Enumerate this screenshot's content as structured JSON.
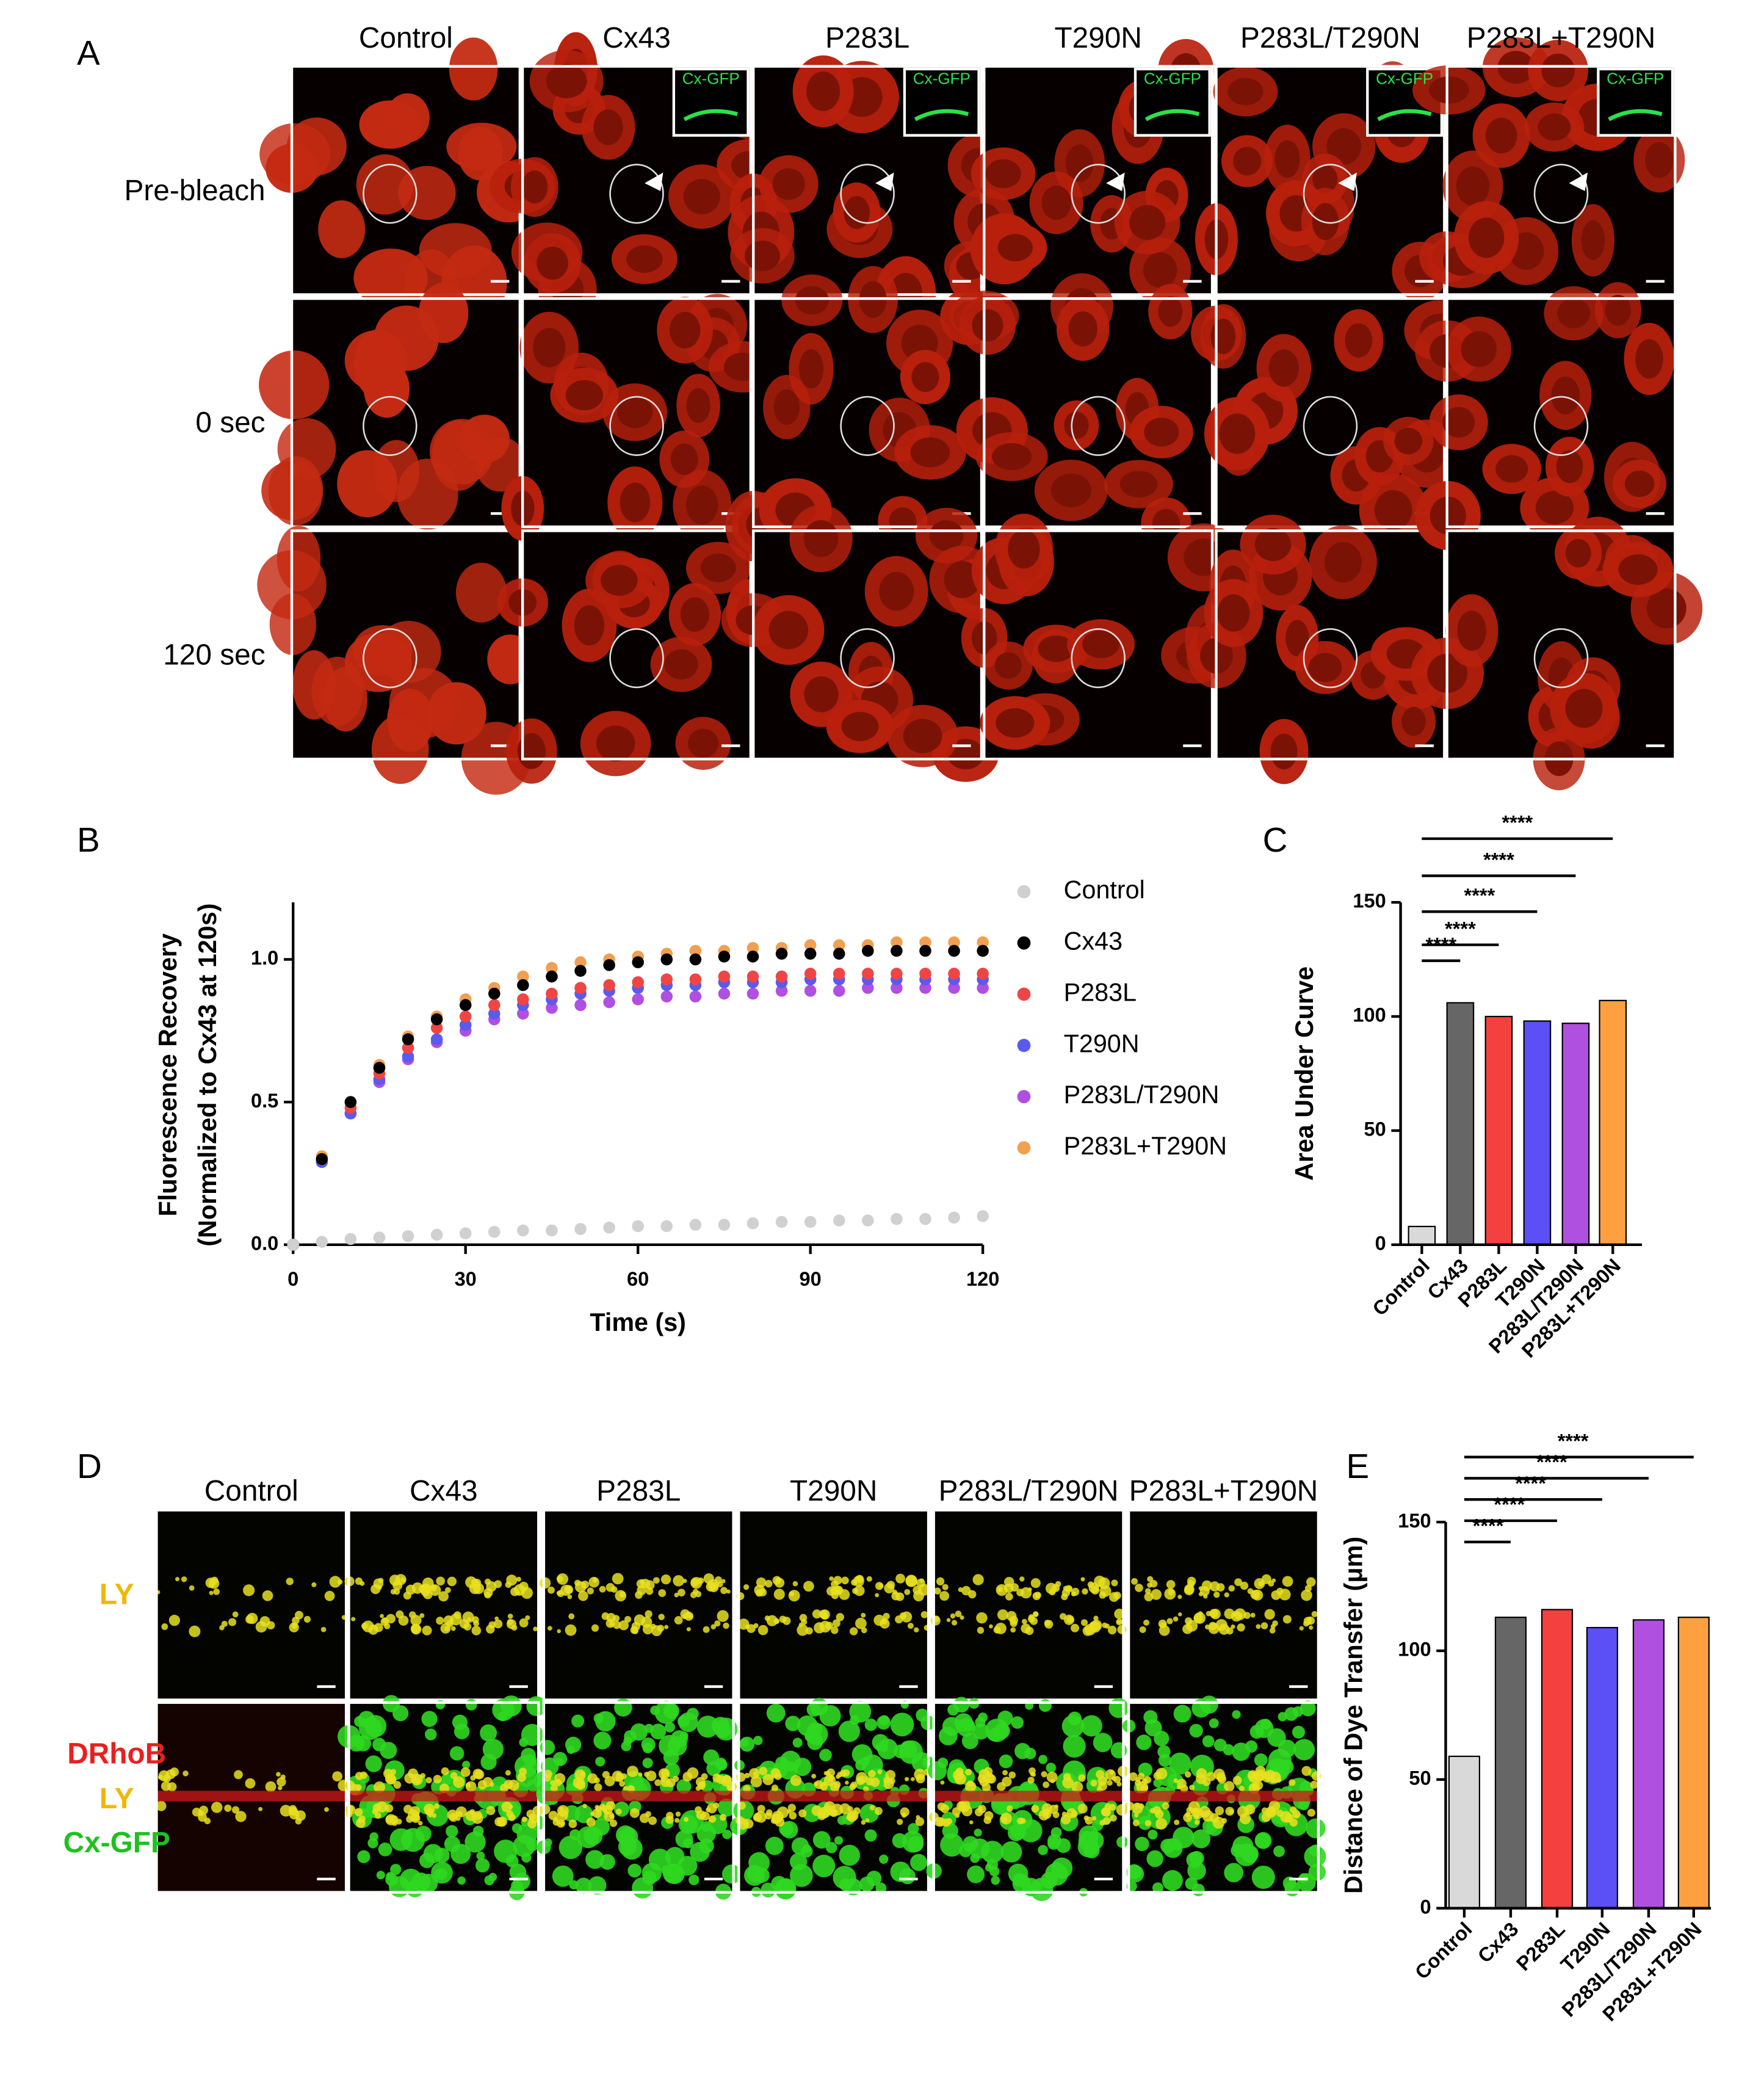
{
  "panel_labels": [
    "A",
    "B",
    "C",
    "D",
    "E"
  ],
  "panel_a": {
    "columns": [
      "Control",
      "Cx43",
      "P283L",
      "T290N",
      "P283L/T290N",
      "P283L+T290N"
    ],
    "rows": [
      "Pre-bleach",
      "0 sec",
      "120 sec"
    ],
    "inset_label": "Cx-GFP"
  },
  "panel_d": {
    "columns": [
      "Control",
      "Cx43",
      "P283L",
      "T290N",
      "P283L/T290N",
      "P283L+T290N"
    ],
    "row1_label": "LY",
    "row2_labels": [
      "DRhoB",
      "LY",
      "Cx-GFP"
    ]
  },
  "chart_data": [
    {
      "type": "line",
      "x_label": "Time (s)",
      "y_label": [
        "Fluorescence Recovery",
        "(Normalized to Cx43 at 120s)"
      ],
      "x": [
        0,
        5,
        10,
        15,
        20,
        25,
        30,
        35,
        40,
        45,
        50,
        55,
        60,
        65,
        70,
        75,
        80,
        85,
        90,
        95,
        100,
        105,
        110,
        115,
        120
      ],
      "xlim": [
        0,
        120
      ],
      "xticks": [
        0,
        30,
        60,
        90,
        120
      ],
      "ylim": [
        0,
        1.2
      ],
      "yticks": [
        {
          "value": 0,
          "label": "0.0"
        },
        0.5,
        {
          "value": 1,
          "label": "1.0"
        }
      ],
      "legend": "right",
      "series": [
        {
          "name": "Control",
          "color": "#d0d0d0",
          "values": [
            0,
            0.01,
            0.02,
            0.025,
            0.03,
            0.035,
            0.04,
            0.045,
            0.05,
            0.05,
            0.055,
            0.06,
            0.065,
            0.065,
            0.07,
            0.07,
            0.075,
            0.08,
            0.08,
            0.085,
            0.085,
            0.09,
            0.09,
            0.095,
            0.1
          ]
        },
        {
          "name": "Cx43",
          "color": "#000000",
          "values": [
            0,
            0.3,
            0.5,
            0.62,
            0.72,
            0.79,
            0.84,
            0.88,
            0.91,
            0.94,
            0.96,
            0.98,
            0.99,
            1.0,
            1.0,
            1.01,
            1.01,
            1.02,
            1.02,
            1.02,
            1.03,
            1.03,
            1.03,
            1.03,
            1.03
          ]
        },
        {
          "name": "P283L",
          "color": "#f04545",
          "values": [
            0,
            0.3,
            0.48,
            0.6,
            0.69,
            0.76,
            0.8,
            0.84,
            0.86,
            0.88,
            0.9,
            0.91,
            0.92,
            0.93,
            0.93,
            0.94,
            0.94,
            0.94,
            0.95,
            0.95,
            0.95,
            0.95,
            0.95,
            0.95,
            0.95
          ]
        },
        {
          "name": "T290N",
          "color": "#5a5af0",
          "values": [
            0,
            0.29,
            0.46,
            0.58,
            0.66,
            0.72,
            0.77,
            0.81,
            0.84,
            0.86,
            0.88,
            0.89,
            0.9,
            0.91,
            0.91,
            0.92,
            0.92,
            0.92,
            0.93,
            0.93,
            0.93,
            0.93,
            0.93,
            0.93,
            0.93
          ]
        },
        {
          "name": "P283L/T290N",
          "color": "#b050e0",
          "values": [
            0,
            0.29,
            0.46,
            0.57,
            0.65,
            0.71,
            0.75,
            0.79,
            0.81,
            0.83,
            0.84,
            0.85,
            0.86,
            0.87,
            0.87,
            0.88,
            0.88,
            0.89,
            0.89,
            0.89,
            0.9,
            0.9,
            0.9,
            0.9,
            0.9
          ]
        },
        {
          "name": "P283L+T290N",
          "color": "#f0a050",
          "values": [
            0,
            0.31,
            0.5,
            0.63,
            0.73,
            0.8,
            0.86,
            0.9,
            0.94,
            0.97,
            0.99,
            1.0,
            1.01,
            1.02,
            1.03,
            1.03,
            1.04,
            1.04,
            1.05,
            1.05,
            1.05,
            1.06,
            1.06,
            1.06,
            1.06
          ]
        }
      ]
    },
    {
      "type": "bar",
      "y_label": "Area Under Curve",
      "categories": [
        "Control",
        "Cx43",
        "P283L",
        "T290N",
        "P283L/T290N",
        "P283L+T290N"
      ],
      "values": [
        8,
        106,
        100,
        98,
        97,
        107
      ],
      "colors": [
        "#d9d9d9",
        "#666666",
        "#f54040",
        "#5a50f5",
        "#b050e0",
        "#ffa040"
      ],
      "ylim": [
        0,
        150
      ],
      "yticks": [
        0,
        50,
        100,
        150
      ],
      "annotations": [
        "****",
        "****",
        "****",
        "****",
        "****"
      ]
    },
    {
      "type": "bar",
      "y_label": "Distance of Dye Transfer  (μm)",
      "categories": [
        "Control",
        "Cx43",
        "P283L",
        "T290N",
        "P283L/T290N",
        "P283L+T290N"
      ],
      "values": [
        59,
        113,
        116,
        109,
        112,
        113
      ],
      "colors": [
        "#d9d9d9",
        "#666666",
        "#f54040",
        "#5a50f5",
        "#b050e0",
        "#ffa040"
      ],
      "ylim": [
        0,
        150
      ],
      "yticks": [
        0,
        50,
        100,
        150
      ],
      "annotations": [
        "****",
        "****",
        "****",
        "****",
        "****"
      ]
    }
  ]
}
